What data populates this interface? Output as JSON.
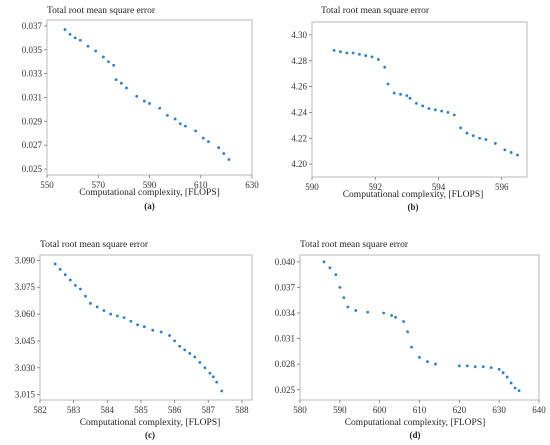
{
  "colors": {
    "points": "#2a7fc6",
    "frame": "#b8b8b8"
  },
  "chart_data": [
    {
      "type": "scatter",
      "panel_label": "(a)",
      "title": "Total root mean square error",
      "xlabel": "Computational complexity, [FLOPS]",
      "ylabel": "",
      "xlim": [
        550,
        630
      ],
      "ylim": [
        0.0245,
        0.0375
      ],
      "xticks": [
        550,
        570,
        590,
        610,
        630
      ],
      "yticks": [
        0.025,
        0.027,
        0.029,
        0.031,
        0.033,
        0.035,
        0.037
      ],
      "x": [
        557,
        559,
        561,
        563,
        566,
        569,
        572,
        574,
        576,
        577,
        579,
        581,
        585,
        588,
        590,
        594,
        597,
        600,
        602,
        604,
        608,
        611,
        613,
        617,
        619,
        621
      ],
      "y": [
        0.0367,
        0.0363,
        0.036,
        0.0358,
        0.0353,
        0.0349,
        0.0344,
        0.034,
        0.0337,
        0.0325,
        0.0322,
        0.0318,
        0.0311,
        0.0307,
        0.0305,
        0.0301,
        0.0295,
        0.0292,
        0.0288,
        0.0286,
        0.0282,
        0.0276,
        0.0273,
        0.0268,
        0.0263,
        0.0258
      ]
    },
    {
      "type": "scatter",
      "panel_label": "(b)",
      "title": "Total root mean square error",
      "xlabel": "Computational complexity, [FLOPS]",
      "ylabel": "",
      "xlim": [
        590,
        596.8
      ],
      "ylim": [
        4.19,
        4.31
      ],
      "xticks": [
        590,
        592,
        594,
        596
      ],
      "yticks": [
        4.2,
        4.22,
        4.24,
        4.26,
        4.28,
        4.3
      ],
      "x": [
        590.7,
        590.9,
        591.1,
        591.3,
        591.5,
        591.7,
        591.9,
        592.1,
        592.3,
        592.4,
        592.6,
        592.8,
        593.0,
        593.1,
        593.3,
        593.5,
        593.7,
        593.9,
        594.1,
        594.3,
        594.5,
        594.7,
        594.9,
        595.1,
        595.3,
        595.5,
        595.8,
        596.1,
        596.3,
        596.5
      ],
      "y": [
        4.288,
        4.287,
        4.286,
        4.286,
        4.285,
        4.284,
        4.283,
        4.281,
        4.275,
        4.262,
        4.255,
        4.254,
        4.253,
        4.251,
        4.247,
        4.245,
        4.243,
        4.242,
        4.241,
        4.24,
        4.238,
        4.228,
        4.224,
        4.222,
        4.22,
        4.219,
        4.216,
        4.211,
        4.209,
        4.207
      ]
    },
    {
      "type": "scatter",
      "panel_label": "(c)",
      "title": "Total root mean square error",
      "xlabel": "Computational complexity, [FLOPS]",
      "ylabel": "",
      "xlim": [
        582,
        588.3
      ],
      "ylim": [
        3.012,
        3.093
      ],
      "xticks": [
        582,
        583,
        584,
        585,
        586,
        587,
        588
      ],
      "yticks": [
        3.015,
        3.03,
        3.045,
        3.06,
        3.075,
        3.09
      ],
      "x": [
        582.45,
        582.6,
        582.75,
        582.9,
        583.05,
        583.2,
        583.35,
        583.5,
        583.7,
        583.9,
        584.1,
        584.3,
        584.5,
        584.7,
        584.9,
        585.1,
        585.35,
        585.6,
        585.85,
        586.0,
        586.15,
        586.3,
        586.45,
        586.6,
        586.75,
        586.9,
        587.05,
        587.15,
        587.25,
        587.4
      ],
      "y": [
        3.088,
        3.085,
        3.082,
        3.079,
        3.076,
        3.074,
        3.07,
        3.066,
        3.064,
        3.062,
        3.06,
        3.059,
        3.058,
        3.056,
        3.054,
        3.053,
        3.051,
        3.05,
        3.048,
        3.045,
        3.042,
        3.04,
        3.038,
        3.036,
        3.033,
        3.03,
        3.027,
        3.025,
        3.022,
        3.017
      ]
    },
    {
      "type": "scatter",
      "panel_label": "(d)",
      "title": "Total root mean square error",
      "xlabel": "Computational complexity, [FLOPS]",
      "ylabel": "",
      "xlim": [
        580,
        640
      ],
      "ylim": [
        0.0238,
        0.0408
      ],
      "xticks": [
        580,
        590,
        600,
        610,
        620,
        630,
        640
      ],
      "yticks": [
        0.025,
        0.028,
        0.031,
        0.034,
        0.037,
        0.04
      ],
      "x": [
        586,
        587.5,
        589,
        590,
        591,
        592,
        594,
        597,
        601,
        603,
        604,
        606,
        607,
        608,
        610,
        612,
        614,
        620,
        622,
        624,
        626,
        628,
        630,
        631,
        632,
        633,
        634,
        635
      ],
      "y": [
        0.04,
        0.0393,
        0.0385,
        0.037,
        0.0358,
        0.0347,
        0.0343,
        0.0341,
        0.034,
        0.0337,
        0.0335,
        0.033,
        0.0318,
        0.03,
        0.0288,
        0.0283,
        0.028,
        0.0278,
        0.0278,
        0.0277,
        0.0277,
        0.0276,
        0.0274,
        0.027,
        0.0265,
        0.0258,
        0.0252,
        0.0249
      ]
    }
  ]
}
